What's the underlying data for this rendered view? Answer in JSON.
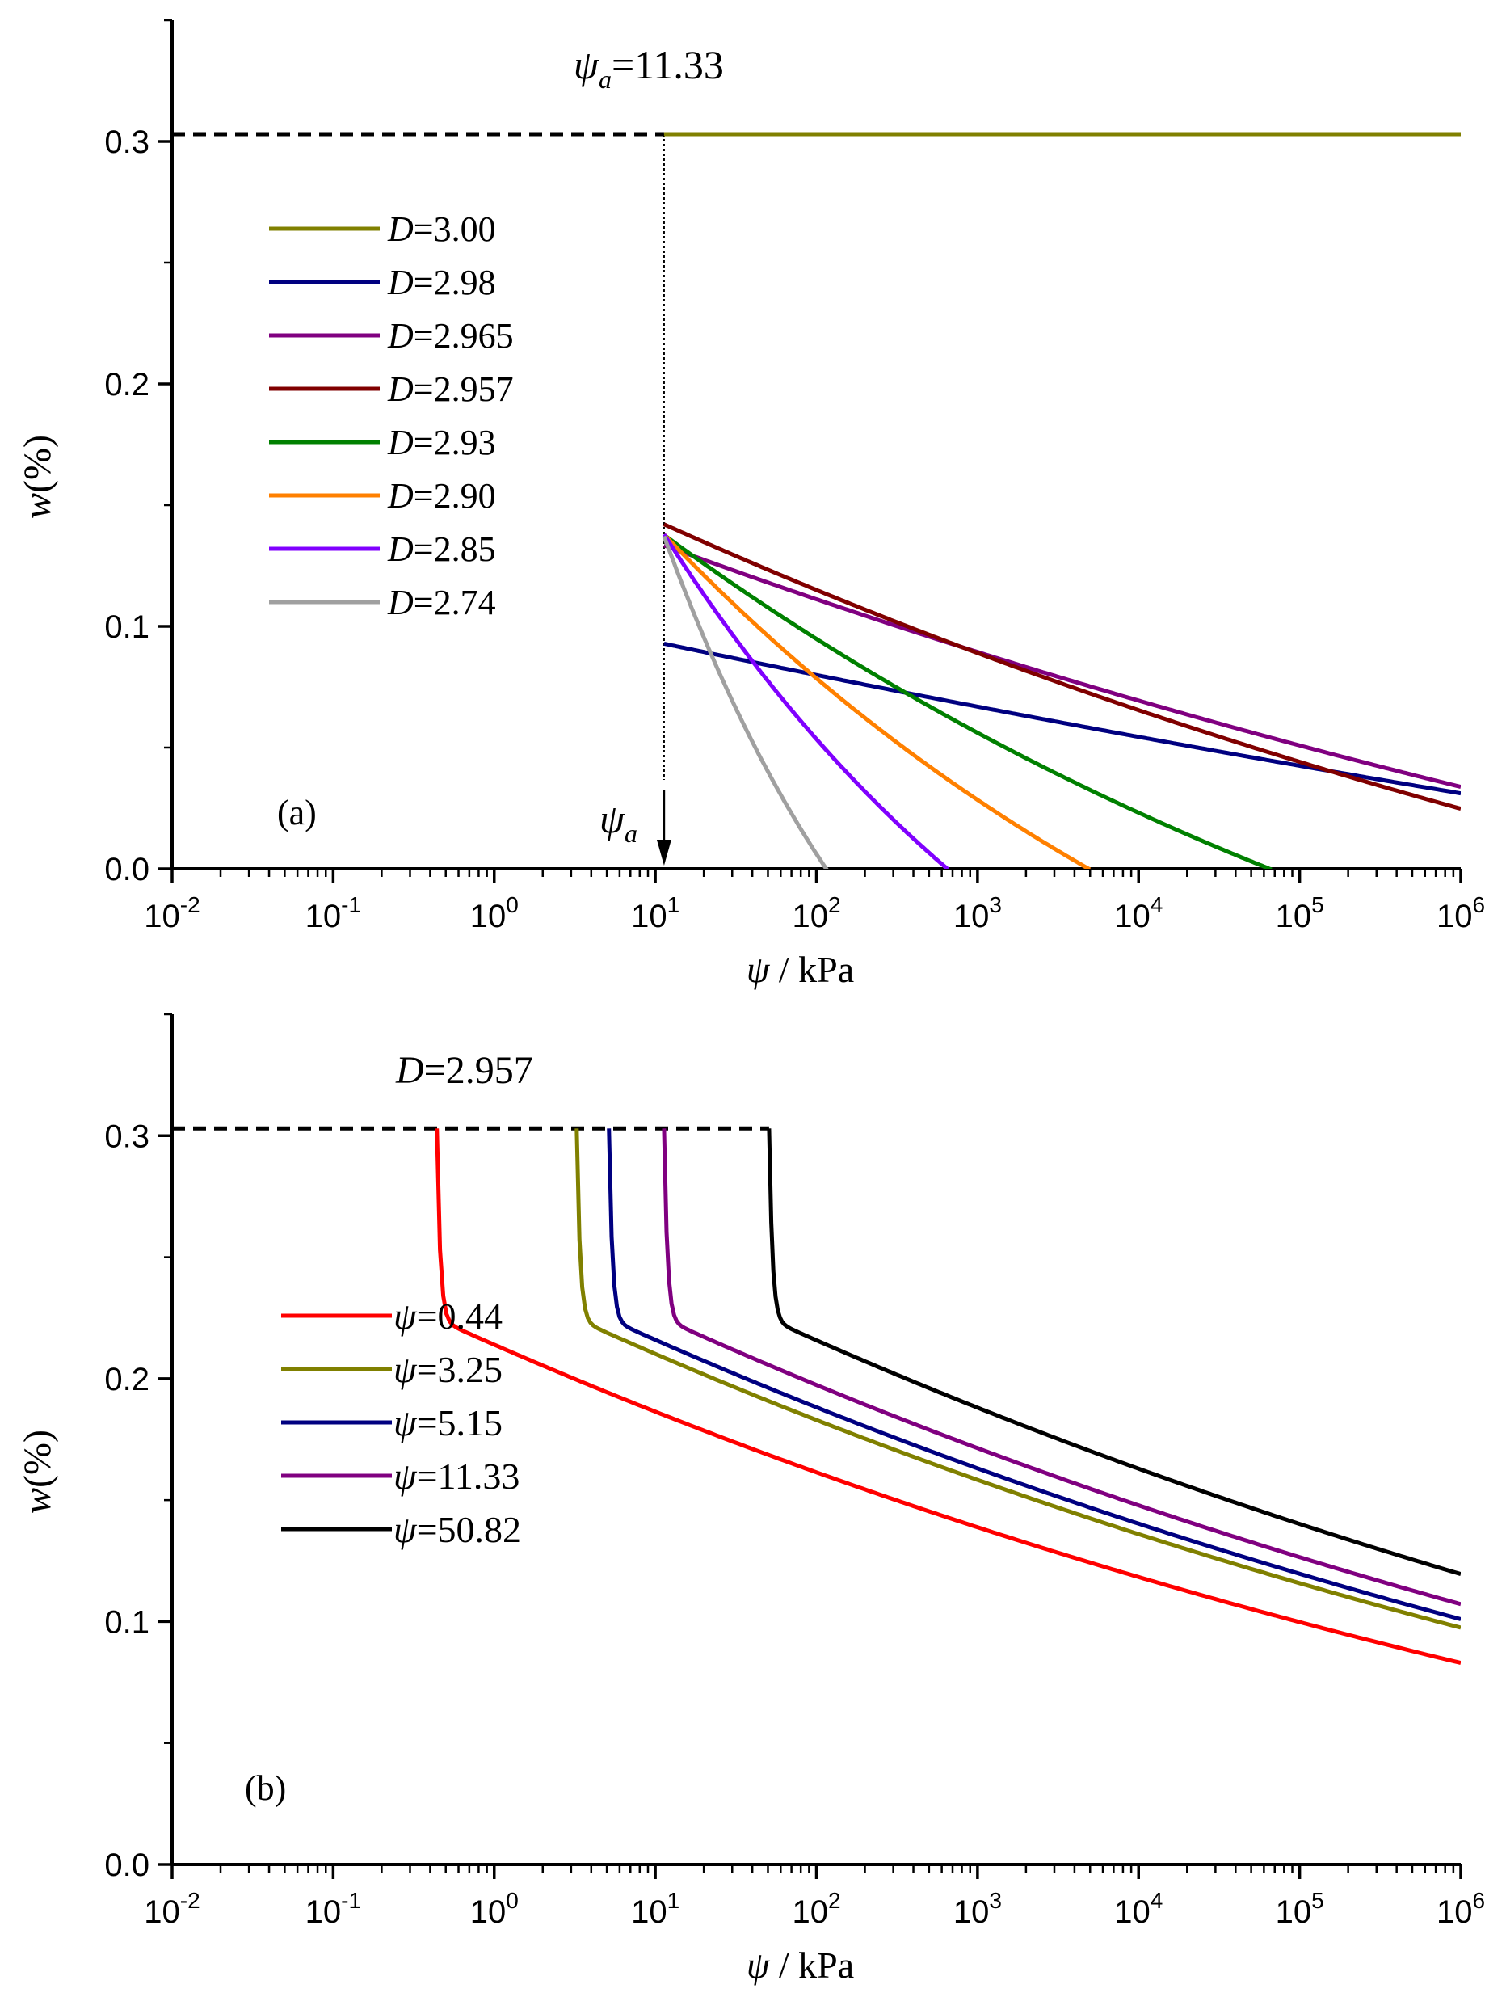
{
  "chart_data": [
    {
      "type": "line",
      "panel_label": "(a)",
      "xlabel": {
        "symbol": "ψ",
        "unit": " / kPa"
      },
      "ylabel": {
        "symbol": "w",
        "unit": "(%)"
      },
      "xscale": "log",
      "xlim": [
        0.01,
        1000000
      ],
      "ylim": [
        0,
        0.35
      ],
      "x_ticks": [
        {
          "base": "10",
          "exp": "-2"
        },
        {
          "base": "10",
          "exp": "-1"
        },
        {
          "base": "10",
          "exp": "0"
        },
        {
          "base": "10",
          "exp": "1"
        },
        {
          "base": "10",
          "exp": "2"
        },
        {
          "base": "10",
          "exp": "3"
        },
        {
          "base": "10",
          "exp": "4"
        },
        {
          "base": "10",
          "exp": "5"
        },
        {
          "base": "10",
          "exp": "6"
        }
      ],
      "y_ticks": [
        "0.0",
        "0.1",
        "0.2",
        "0.3"
      ],
      "annotations": {
        "top_label": {
          "symbol": "ψ",
          "sub": "a",
          "text": "=11.33"
        },
        "arrow_label": {
          "symbol": "ψ",
          "sub": "a"
        }
      },
      "air_entry": 11.33,
      "w_sat": 0.303,
      "legend_position": "upper-left",
      "series": [
        {
          "name": "D=3.00",
          "symbol": "D",
          "value_text": "=3.00",
          "D": 3.0,
          "color": "#808000"
        },
        {
          "name": "D=2.98",
          "symbol": "D",
          "value_text": "=2.98",
          "D": 2.98,
          "color": "#000080"
        },
        {
          "name": "D=2.965",
          "symbol": "D",
          "value_text": "=2.965",
          "D": 2.965,
          "color": "#800080"
        },
        {
          "name": "D=2.957",
          "symbol": "D",
          "value_text": "=2.957",
          "D": 2.957,
          "color": "#800000"
        },
        {
          "name": "D=2.93",
          "symbol": "D",
          "value_text": "=2.93",
          "D": 2.93,
          "color": "#008000"
        },
        {
          "name": "D=2.90",
          "symbol": "D",
          "value_text": "=2.90",
          "D": 2.9,
          "color": "#ff8000"
        },
        {
          "name": "D=2.85",
          "symbol": "D",
          "value_text": "=2.85",
          "D": 2.85,
          "color": "#8000ff"
        },
        {
          "name": "D=2.74",
          "symbol": "D",
          "value_text": "=2.74",
          "D": 2.74,
          "color": "#a0a0a0"
        }
      ]
    },
    {
      "type": "line",
      "panel_label": "(b)",
      "xlabel": {
        "symbol": "ψ",
        "unit": " / kPa"
      },
      "ylabel": {
        "symbol": "w",
        "unit": "(%)"
      },
      "xscale": "log",
      "xlim": [
        0.01,
        1000000
      ],
      "ylim": [
        0,
        0.35
      ],
      "x_ticks": [
        {
          "base": "10",
          "exp": "-2"
        },
        {
          "base": "10",
          "exp": "-1"
        },
        {
          "base": "10",
          "exp": "0"
        },
        {
          "base": "10",
          "exp": "1"
        },
        {
          "base": "10",
          "exp": "2"
        },
        {
          "base": "10",
          "exp": "3"
        },
        {
          "base": "10",
          "exp": "4"
        },
        {
          "base": "10",
          "exp": "5"
        },
        {
          "base": "10",
          "exp": "6"
        }
      ],
      "y_ticks": [
        "0.0",
        "0.1",
        "0.2",
        "0.3"
      ],
      "annotations": {
        "top_label": {
          "symbol": "D",
          "text": "=2.957"
        }
      },
      "D": 2.957,
      "w_sat": 0.303,
      "legend_position": "middle-left",
      "series": [
        {
          "name": "ψ=0.44",
          "symbol": "ψ",
          "value_text": "=0.44",
          "air_entry": 0.44,
          "color": "#ff0000"
        },
        {
          "name": "ψ=3.25",
          "symbol": "ψ",
          "value_text": "=3.25",
          "air_entry": 3.25,
          "color": "#808000"
        },
        {
          "name": "ψ=5.15",
          "symbol": "ψ",
          "value_text": "=5.15",
          "air_entry": 5.15,
          "color": "#000080"
        },
        {
          "name": "ψ=11.33",
          "symbol": "ψ",
          "value_text": "=11.33",
          "air_entry": 11.33,
          "color": "#800080"
        },
        {
          "name": "ψ=50.82",
          "symbol": "ψ",
          "value_text": "=50.82",
          "air_entry": 50.82,
          "color": "#000000"
        }
      ]
    }
  ]
}
